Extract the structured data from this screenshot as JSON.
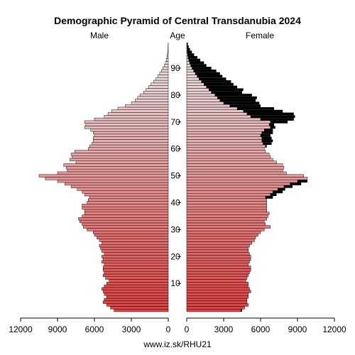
{
  "chart_data": {
    "type": "population-pyramid",
    "title": "Demographic Pyramid of Central Transdanubia 2024",
    "headers": {
      "left": "Male",
      "center": "Age",
      "right": "Female"
    },
    "source_label": "www.iz.sk/RHU21",
    "x_axis_ticks": [
      0,
      3000,
      6000,
      9000,
      12000
    ],
    "x_tick_labels": [
      "12000",
      "9000",
      "6000",
      "3000",
      "0"
    ],
    "age_ticks": [
      10,
      20,
      30,
      40,
      50,
      60,
      70,
      80,
      90
    ],
    "age_range": [
      0,
      99
    ],
    "xlim": [
      0,
      12000
    ],
    "colors": {
      "young": "#e04040",
      "old": "#e8d6d8",
      "female_surplus": "#000000",
      "outline": "#000000"
    },
    "series": [
      {
        "name": "Male",
        "ages": [
          0,
          1,
          2,
          3,
          4,
          5,
          6,
          7,
          8,
          9,
          10,
          11,
          12,
          13,
          14,
          15,
          16,
          17,
          18,
          19,
          20,
          21,
          22,
          23,
          24,
          25,
          26,
          27,
          28,
          29,
          30,
          31,
          32,
          33,
          34,
          35,
          36,
          37,
          38,
          39,
          40,
          41,
          42,
          43,
          44,
          45,
          46,
          47,
          48,
          49,
          50,
          51,
          52,
          53,
          54,
          55,
          56,
          57,
          58,
          59,
          60,
          61,
          62,
          63,
          64,
          65,
          66,
          67,
          68,
          69,
          70,
          71,
          72,
          73,
          74,
          75,
          76,
          77,
          78,
          79,
          80,
          81,
          82,
          83,
          84,
          85,
          86,
          87,
          88,
          89,
          90,
          91,
          92,
          93,
          94,
          95,
          96,
          97,
          98,
          99
        ],
        "values": [
          4400,
          4700,
          5000,
          5300,
          5200,
          5000,
          5200,
          5300,
          5400,
          5200,
          5000,
          4800,
          5100,
          5300,
          5200,
          5300,
          5300,
          5200,
          5400,
          5300,
          5400,
          5200,
          5400,
          5500,
          5600,
          5400,
          5600,
          5800,
          6000,
          6100,
          6600,
          6900,
          7000,
          7200,
          7300,
          7000,
          6800,
          6800,
          7000,
          7000,
          6600,
          6500,
          6400,
          6800,
          7000,
          7400,
          7900,
          8400,
          9000,
          10000,
          10500,
          9000,
          8200,
          8300,
          8500,
          7500,
          8000,
          7800,
          7900,
          7600,
          6500,
          6400,
          6200,
          6100,
          6100,
          6000,
          6100,
          6300,
          6800,
          6700,
          6800,
          6000,
          5200,
          4900,
          4600,
          4100,
          3500,
          3000,
          2700,
          2500,
          2300,
          2000,
          1800,
          1600,
          1400,
          1200,
          1000,
          850,
          700,
          560,
          430,
          320,
          230,
          160,
          110,
          70,
          45,
          28,
          16,
          8
        ]
      },
      {
        "name": "Female",
        "ages": [
          0,
          1,
          2,
          3,
          4,
          5,
          6,
          7,
          8,
          9,
          10,
          11,
          12,
          13,
          14,
          15,
          16,
          17,
          18,
          19,
          20,
          21,
          22,
          23,
          24,
          25,
          26,
          27,
          28,
          29,
          30,
          31,
          32,
          33,
          34,
          35,
          36,
          37,
          38,
          39,
          40,
          41,
          42,
          43,
          44,
          45,
          46,
          47,
          48,
          49,
          50,
          51,
          52,
          53,
          54,
          55,
          56,
          57,
          58,
          59,
          60,
          61,
          62,
          63,
          64,
          65,
          66,
          67,
          68,
          69,
          70,
          71,
          72,
          73,
          74,
          75,
          76,
          77,
          78,
          79,
          80,
          81,
          82,
          83,
          84,
          85,
          86,
          87,
          88,
          89,
          90,
          91,
          92,
          93,
          94,
          95,
          96,
          97,
          98,
          99
        ],
        "values": [
          4500,
          4700,
          5000,
          4900,
          4900,
          5000,
          5000,
          5200,
          5100,
          5000,
          5000,
          4800,
          4900,
          5000,
          5100,
          5200,
          5200,
          5000,
          5100,
          5200,
          5200,
          5100,
          5000,
          5000,
          5100,
          5300,
          5500,
          5600,
          5800,
          6000,
          6300,
          6800,
          6400,
          6300,
          6500,
          6600,
          6700,
          6500,
          6500,
          6500,
          6500,
          6500,
          7000,
          7300,
          7800,
          8000,
          8600,
          9300,
          9800,
          9800,
          9500,
          8100,
          7800,
          7900,
          7800,
          7300,
          7000,
          6800,
          6700,
          6400,
          6300,
          6500,
          6900,
          7000,
          6900,
          6800,
          7000,
          7000,
          7200,
          7100,
          8200,
          8700,
          8800,
          8700,
          7800,
          7100,
          6000,
          5900,
          5600,
          5700,
          5300,
          4500,
          4600,
          4100,
          3800,
          3600,
          3200,
          2900,
          2700,
          2400,
          2000,
          1600,
          1400,
          1100,
          860,
          600,
          420,
          270,
          160,
          90
        ]
      }
    ]
  }
}
